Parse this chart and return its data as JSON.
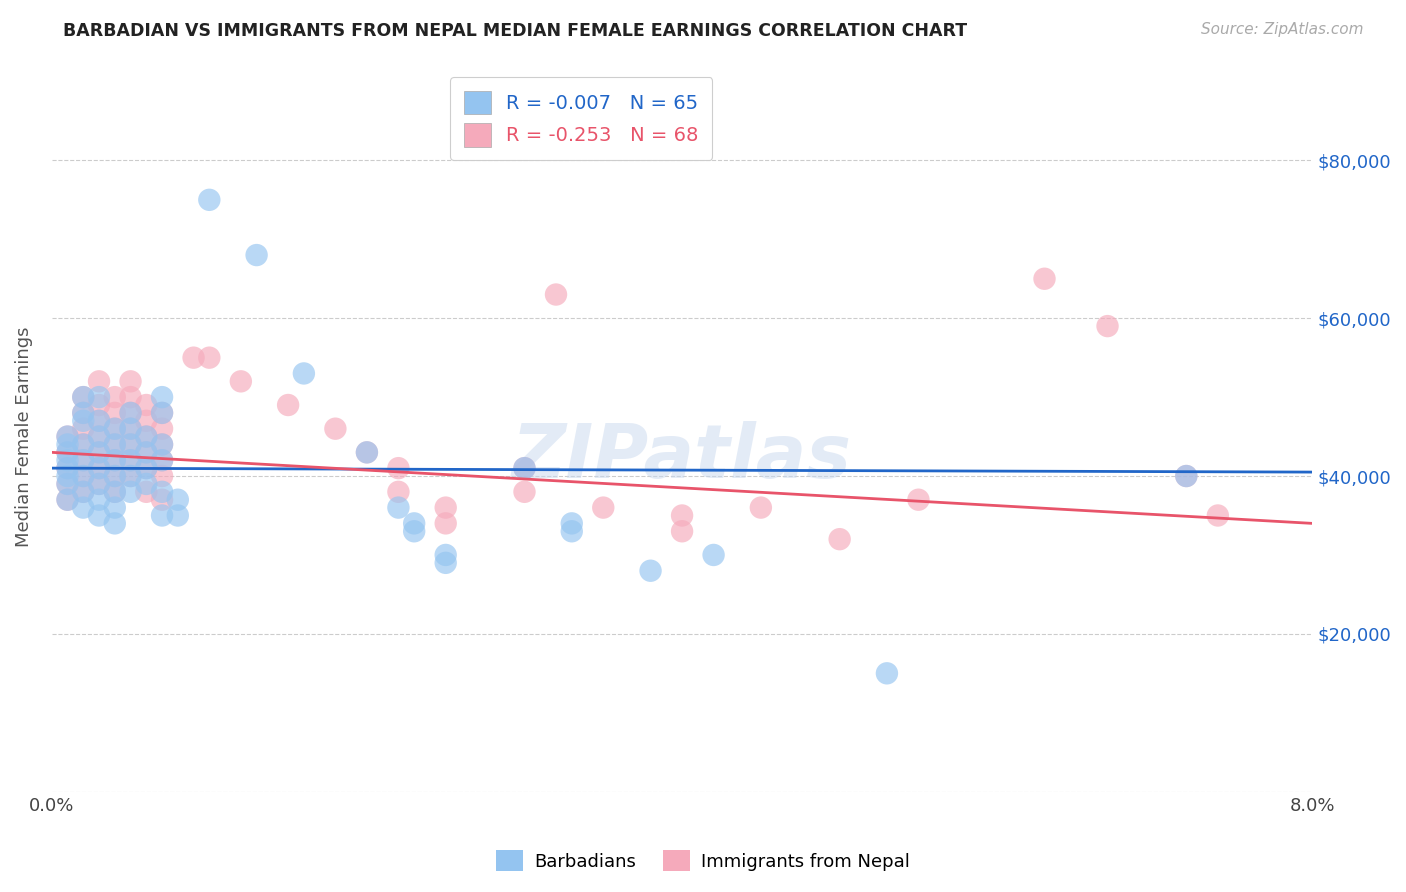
{
  "title": "BARBADIAN VS IMMIGRANTS FROM NEPAL MEDIAN FEMALE EARNINGS CORRELATION CHART",
  "source": "Source: ZipAtlas.com",
  "ylabel": "Median Female Earnings",
  "xlim": [
    0.0,
    0.08
  ],
  "ylim": [
    0,
    90000
  ],
  "yticks": [
    0,
    20000,
    40000,
    60000,
    80000
  ],
  "ytick_labels": [
    "",
    "$20,000",
    "$40,000",
    "$60,000",
    "$80,000"
  ],
  "xticks": [
    0.0,
    0.02,
    0.04,
    0.06,
    0.08
  ],
  "xtick_labels": [
    "0.0%",
    "",
    "",
    "",
    "8.0%"
  ],
  "R_blue": -0.007,
  "N_blue": 65,
  "R_pink": -0.253,
  "N_pink": 68,
  "blue_color": "#94C4F0",
  "pink_color": "#F5AABB",
  "blue_line_color": "#2166c8",
  "pink_line_color": "#e8546a",
  "watermark": "ZIPatlas",
  "title_color": "#222222",
  "axis_label_color": "#555555",
  "grid_color": "#cccccc",
  "blue_scatter": [
    [
      0.001,
      41000
    ],
    [
      0.001,
      43000
    ],
    [
      0.001,
      45000
    ],
    [
      0.001,
      39000
    ],
    [
      0.001,
      37000
    ],
    [
      0.001,
      42000
    ],
    [
      0.001,
      44000
    ],
    [
      0.001,
      40000
    ],
    [
      0.002,
      50000
    ],
    [
      0.002,
      47000
    ],
    [
      0.002,
      44000
    ],
    [
      0.002,
      42000
    ],
    [
      0.002,
      40000
    ],
    [
      0.002,
      38000
    ],
    [
      0.002,
      36000
    ],
    [
      0.002,
      48000
    ],
    [
      0.003,
      50000
    ],
    [
      0.003,
      47000
    ],
    [
      0.003,
      45000
    ],
    [
      0.003,
      43000
    ],
    [
      0.003,
      41000
    ],
    [
      0.003,
      39000
    ],
    [
      0.003,
      37000
    ],
    [
      0.003,
      35000
    ],
    [
      0.004,
      46000
    ],
    [
      0.004,
      44000
    ],
    [
      0.004,
      42000
    ],
    [
      0.004,
      40000
    ],
    [
      0.004,
      38000
    ],
    [
      0.004,
      36000
    ],
    [
      0.004,
      34000
    ],
    [
      0.005,
      48000
    ],
    [
      0.005,
      46000
    ],
    [
      0.005,
      44000
    ],
    [
      0.005,
      42000
    ],
    [
      0.005,
      40000
    ],
    [
      0.005,
      38000
    ],
    [
      0.006,
      45000
    ],
    [
      0.006,
      43000
    ],
    [
      0.006,
      41000
    ],
    [
      0.006,
      39000
    ],
    [
      0.007,
      50000
    ],
    [
      0.007,
      48000
    ],
    [
      0.007,
      44000
    ],
    [
      0.007,
      42000
    ],
    [
      0.007,
      38000
    ],
    [
      0.007,
      35000
    ],
    [
      0.008,
      37000
    ],
    [
      0.008,
      35000
    ],
    [
      0.01,
      75000
    ],
    [
      0.013,
      68000
    ],
    [
      0.016,
      53000
    ],
    [
      0.02,
      43000
    ],
    [
      0.022,
      36000
    ],
    [
      0.023,
      34000
    ],
    [
      0.023,
      33000
    ],
    [
      0.025,
      30000
    ],
    [
      0.025,
      29000
    ],
    [
      0.03,
      41000
    ],
    [
      0.033,
      34000
    ],
    [
      0.033,
      33000
    ],
    [
      0.038,
      28000
    ],
    [
      0.042,
      30000
    ],
    [
      0.053,
      15000
    ],
    [
      0.072,
      40000
    ]
  ],
  "pink_scatter": [
    [
      0.001,
      43000
    ],
    [
      0.001,
      45000
    ],
    [
      0.001,
      41000
    ],
    [
      0.001,
      39000
    ],
    [
      0.001,
      37000
    ],
    [
      0.002,
      50000
    ],
    [
      0.002,
      48000
    ],
    [
      0.002,
      46000
    ],
    [
      0.002,
      44000
    ],
    [
      0.002,
      42000
    ],
    [
      0.002,
      40000
    ],
    [
      0.002,
      38000
    ],
    [
      0.003,
      52000
    ],
    [
      0.003,
      49000
    ],
    [
      0.003,
      47000
    ],
    [
      0.003,
      45000
    ],
    [
      0.003,
      43000
    ],
    [
      0.003,
      41000
    ],
    [
      0.003,
      39000
    ],
    [
      0.004,
      50000
    ],
    [
      0.004,
      48000
    ],
    [
      0.004,
      46000
    ],
    [
      0.004,
      44000
    ],
    [
      0.004,
      42000
    ],
    [
      0.004,
      40000
    ],
    [
      0.004,
      38000
    ],
    [
      0.005,
      52000
    ],
    [
      0.005,
      50000
    ],
    [
      0.005,
      48000
    ],
    [
      0.005,
      46000
    ],
    [
      0.005,
      44000
    ],
    [
      0.005,
      42000
    ],
    [
      0.005,
      40000
    ],
    [
      0.006,
      49000
    ],
    [
      0.006,
      47000
    ],
    [
      0.006,
      45000
    ],
    [
      0.006,
      43000
    ],
    [
      0.006,
      41000
    ],
    [
      0.006,
      38000
    ],
    [
      0.007,
      48000
    ],
    [
      0.007,
      46000
    ],
    [
      0.007,
      44000
    ],
    [
      0.007,
      42000
    ],
    [
      0.007,
      40000
    ],
    [
      0.007,
      37000
    ],
    [
      0.009,
      55000
    ],
    [
      0.01,
      55000
    ],
    [
      0.012,
      52000
    ],
    [
      0.015,
      49000
    ],
    [
      0.018,
      46000
    ],
    [
      0.02,
      43000
    ],
    [
      0.022,
      41000
    ],
    [
      0.022,
      38000
    ],
    [
      0.025,
      36000
    ],
    [
      0.025,
      34000
    ],
    [
      0.03,
      41000
    ],
    [
      0.03,
      38000
    ],
    [
      0.032,
      63000
    ],
    [
      0.035,
      36000
    ],
    [
      0.04,
      35000
    ],
    [
      0.04,
      33000
    ],
    [
      0.045,
      36000
    ],
    [
      0.05,
      32000
    ],
    [
      0.055,
      37000
    ],
    [
      0.063,
      65000
    ],
    [
      0.067,
      59000
    ],
    [
      0.072,
      40000
    ],
    [
      0.074,
      35000
    ]
  ]
}
